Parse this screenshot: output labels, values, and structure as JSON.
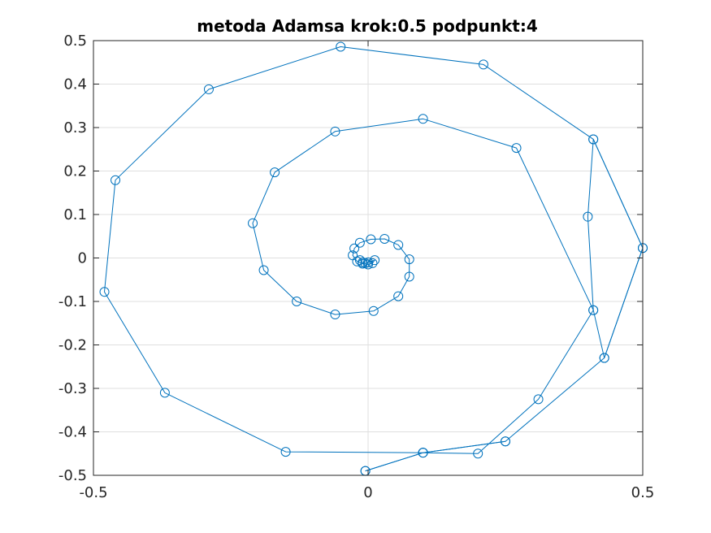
{
  "chart_data": {
    "type": "line",
    "title": "metoda Adamsa krok:0.5 podpunkt:4",
    "xlabel": "",
    "ylabel": "",
    "xlim": [
      -0.5,
      0.5
    ],
    "ylim": [
      -0.5,
      0.5
    ],
    "x_ticks": [
      "-0.5",
      "0",
      "0.5"
    ],
    "y_ticks": [
      "0.5",
      "0.4",
      "0.3",
      "0.2",
      "0.1",
      "0",
      "-0.1",
      "-0.2",
      "-0.3",
      "-0.4",
      "-0.5"
    ],
    "x_tick_values": [
      -0.5,
      0,
      0.5
    ],
    "y_tick_values": [
      0.5,
      0.4,
      0.3,
      0.2,
      0.1,
      0,
      -0.1,
      -0.2,
      -0.3,
      -0.4,
      -0.5
    ],
    "grid": true,
    "marker": "circle",
    "line_color": "#0072bd",
    "series": [
      {
        "x": [
          -0.005,
          0.1,
          0.25,
          0.43,
          0.5,
          0.41,
          0.4,
          0.41,
          0.27,
          0.1,
          -0.06,
          -0.17,
          -0.21,
          -0.19,
          -0.13,
          -0.06,
          0.01,
          0.055,
          0.075,
          0.075,
          0.055,
          0.03,
          0.005,
          -0.015,
          -0.025,
          -0.028,
          -0.02,
          -0.01,
          0.0,
          0.008,
          0.012,
          0.0,
          -0.005,
          -0.01,
          -0.015
        ],
        "y": [
          -0.49,
          -0.448,
          -0.422,
          -0.23,
          0.023,
          0.273,
          0.095,
          -0.12,
          0.253,
          0.32,
          0.291,
          0.197,
          0.08,
          -0.028,
          -0.1,
          -0.13,
          -0.122,
          -0.088,
          -0.043,
          -0.003,
          0.03,
          0.044,
          0.043,
          0.035,
          0.022,
          0.006,
          -0.008,
          -0.013,
          -0.015,
          -0.012,
          -0.005,
          -0.01,
          -0.012,
          -0.01,
          -0.005
        ]
      },
      {
        "x": [
          -0.005,
          0.1,
          0.2,
          0.31,
          0.41,
          0.43,
          0.5,
          0.41,
          0.21,
          -0.05,
          -0.29,
          -0.46,
          -0.48,
          -0.37,
          -0.15,
          0.1,
          0.25
        ],
        "y": [
          -0.49,
          -0.448,
          -0.45,
          -0.325,
          -0.12,
          -0.23,
          0.023,
          0.273,
          0.445,
          0.486,
          0.388,
          0.179,
          -0.078,
          -0.31,
          -0.446,
          -0.448,
          -0.422
        ]
      }
    ]
  }
}
